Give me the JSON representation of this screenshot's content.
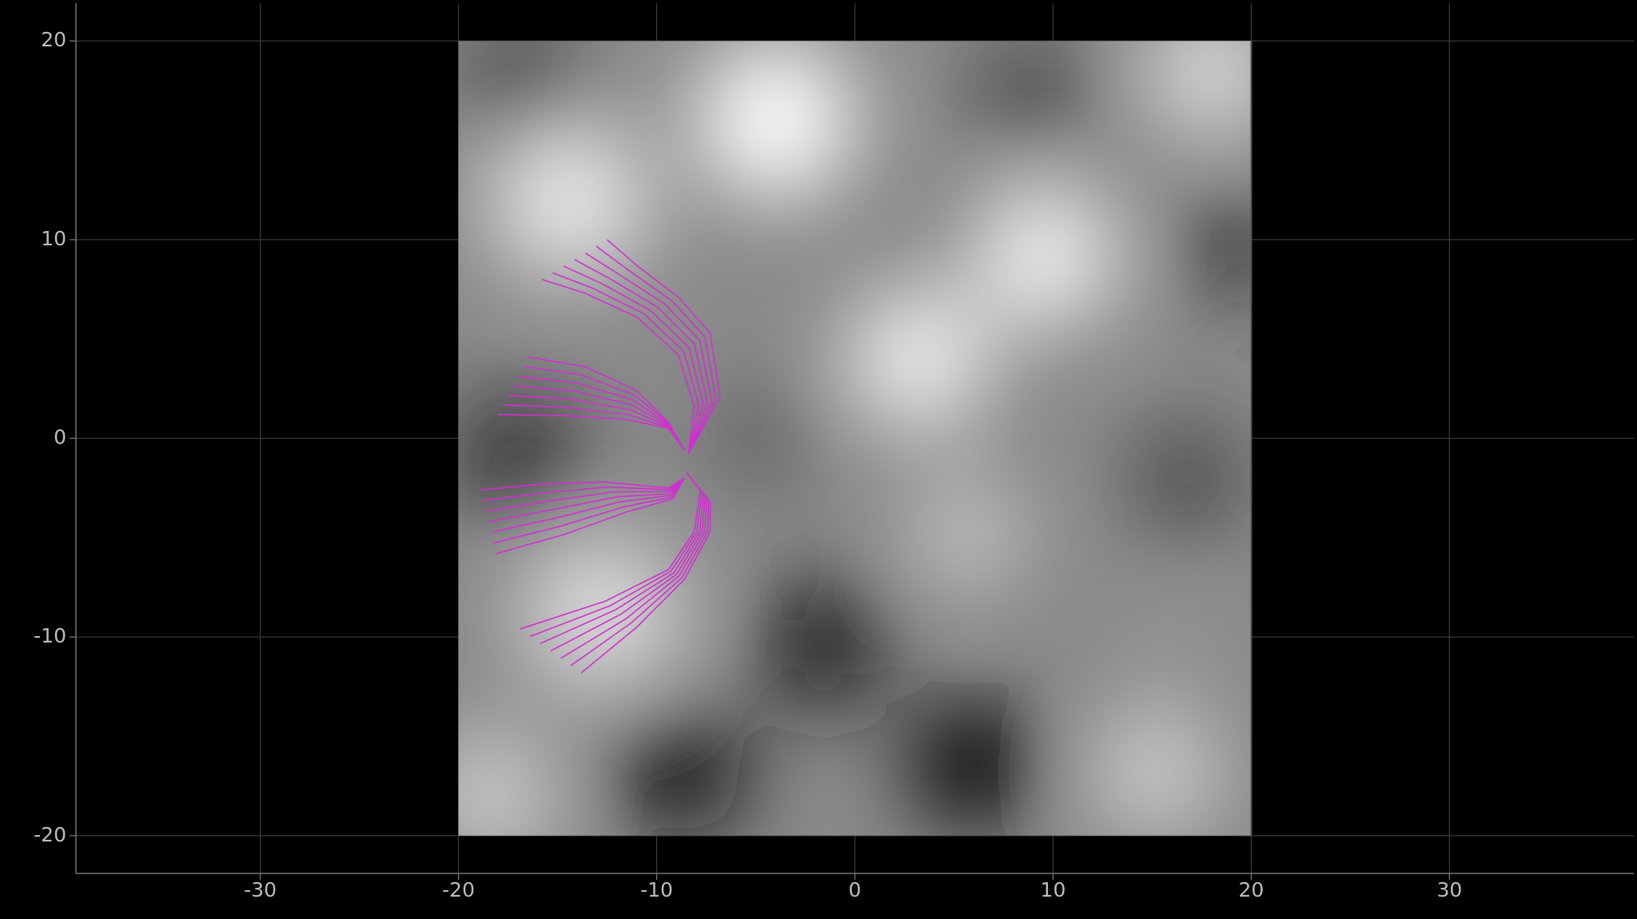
{
  "chart_data": {
    "type": "line",
    "xlim": [
      -39.3,
      39.3
    ],
    "ylim": [
      -21.9,
      21.9
    ],
    "xticks": [
      -30,
      -20,
      -10,
      0,
      10,
      20,
      30
    ],
    "yticks": [
      -20,
      -10,
      0,
      10,
      20
    ],
    "grid": true,
    "image_extent": [
      -20,
      20,
      -20,
      20
    ],
    "line_color": "#d22fd2",
    "series": [
      {
        "x": [
          -8.4,
          -8.1,
          -8.9,
          -11,
          -13.6,
          -15.8
        ],
        "y": [
          -0.8,
          1.6,
          4.2,
          6.1,
          7.3,
          8.0
        ]
      },
      {
        "x": [
          -8.4,
          -7.88,
          -8.63,
          -10.65,
          -13.17,
          -15.25
        ],
        "y": [
          -0.8,
          1.68,
          4.38,
          6.27,
          7.53,
          8.33
        ]
      },
      {
        "x": [
          -8.4,
          -7.67,
          -8.37,
          -10.3,
          -12.73,
          -14.7
        ],
        "y": [
          -0.8,
          1.77,
          4.57,
          6.43,
          7.77,
          8.67
        ]
      },
      {
        "x": [
          -8.4,
          -7.45,
          -8.1,
          -9.95,
          -12.3,
          -14.15
        ],
        "y": [
          -0.8,
          1.85,
          4.75,
          6.6,
          8.0,
          9.0
        ]
      },
      {
        "x": [
          -8.4,
          -7.23,
          -7.83,
          -9.6,
          -11.87,
          -13.6
        ],
        "y": [
          -0.8,
          1.93,
          4.93,
          6.77,
          8.23,
          9.33
        ]
      },
      {
        "x": [
          -8.4,
          -7.02,
          -7.57,
          -9.25,
          -11.43,
          -13.05
        ],
        "y": [
          -0.8,
          2.02,
          5.12,
          6.93,
          8.47,
          9.67
        ]
      },
      {
        "x": [
          -8.4,
          -6.8,
          -7.3,
          -8.9,
          -11,
          -12.5
        ],
        "y": [
          -0.8,
          2.1,
          5.3,
          7.1,
          8.7,
          10.0
        ]
      },
      {
        "x": [
          -8.6,
          -9.4,
          -11.5,
          -14.7,
          -18
        ],
        "y": [
          -0.6,
          0.5,
          0.95,
          1.15,
          1.2
        ]
      },
      {
        "x": [
          -8.6,
          -9.4,
          -11.42,
          -14.52,
          -17.75
        ],
        "y": [
          -0.6,
          0.55,
          1.19,
          1.56,
          1.68
        ]
      },
      {
        "x": [
          -8.6,
          -9.4,
          -11.33,
          -14.33,
          -17.5
        ],
        "y": [
          -0.6,
          0.6,
          1.43,
          1.97,
          2.17
        ]
      },
      {
        "x": [
          -8.6,
          -9.4,
          -11.25,
          -14.15,
          -17.25
        ],
        "y": [
          -0.6,
          0.65,
          1.68,
          2.38,
          2.65
        ]
      },
      {
        "x": [
          -8.6,
          -9.4,
          -11.17,
          -13.97,
          -17.0
        ],
        "y": [
          -0.6,
          0.7,
          1.92,
          2.78,
          3.13
        ]
      },
      {
        "x": [
          -8.6,
          -9.4,
          -11.08,
          -13.78,
          -16.75
        ],
        "y": [
          -0.6,
          0.75,
          2.16,
          3.19,
          3.62
        ]
      },
      {
        "x": [
          -8.6,
          -9.4,
          -11,
          -13.6,
          -16.5
        ],
        "y": [
          -0.6,
          0.8,
          2.4,
          3.6,
          4.1
        ]
      },
      {
        "x": [
          -8.6,
          -9.4,
          -12.6,
          -15.7,
          -18.9
        ],
        "y": [
          -2.0,
          -2.5,
          -2.2,
          -2.3,
          -2.6
        ]
      },
      {
        "x": [
          -8.6,
          -9.37,
          -12.42,
          -15.53,
          -18.77
        ],
        "y": [
          -2.0,
          -2.59,
          -2.45,
          -2.73,
          -3.13
        ]
      },
      {
        "x": [
          -8.6,
          -9.33,
          -12.23,
          -15.37,
          -18.63
        ],
        "y": [
          -2.0,
          -2.68,
          -2.7,
          -3.15,
          -3.67
        ]
      },
      {
        "x": [
          -8.6,
          -9.3,
          -12.05,
          -15.2,
          -18.5
        ],
        "y": [
          -2.0,
          -2.78,
          -2.95,
          -3.58,
          -4.2
        ]
      },
      {
        "x": [
          -8.6,
          -9.27,
          -11.87,
          -15.03,
          -18.37
        ],
        "y": [
          -2.0,
          -2.87,
          -3.2,
          -4.0,
          -4.73
        ]
      },
      {
        "x": [
          -8.6,
          -9.23,
          -11.68,
          -14.87,
          -18.23
        ],
        "y": [
          -2.0,
          -2.96,
          -3.45,
          -4.43,
          -5.27
        ]
      },
      {
        "x": [
          -8.6,
          -9.2,
          -11.5,
          -14.7,
          -18.1
        ],
        "y": [
          -2.0,
          -3.05,
          -3.7,
          -4.85,
          -5.8
        ]
      },
      {
        "x": [
          -8.5,
          -7.8,
          -8.1,
          -9.4,
          -12.6,
          -16.9
        ],
        "y": [
          -1.7,
          -2.6,
          -4.7,
          -6.6,
          -8.2,
          -9.6
        ]
      },
      {
        "x": [
          -8.5,
          -7.72,
          -7.97,
          -9.27,
          -12.33,
          -16.38
        ],
        "y": [
          -1.7,
          -2.7,
          -4.7,
          -6.68,
          -8.42,
          -9.97
        ]
      },
      {
        "x": [
          -8.5,
          -7.63,
          -7.83,
          -9.13,
          -12.07,
          -15.87
        ],
        "y": [
          -1.7,
          -2.8,
          -4.7,
          -6.77,
          -8.63,
          -10.33
        ]
      },
      {
        "x": [
          -8.5,
          -7.55,
          -7.7,
          -9.0,
          -11.8,
          -15.35
        ],
        "y": [
          -1.7,
          -2.9,
          -4.7,
          -6.85,
          -8.85,
          -10.7
        ]
      },
      {
        "x": [
          -8.5,
          -7.47,
          -7.57,
          -8.87,
          -11.53,
          -14.83
        ],
        "y": [
          -1.7,
          -3.0,
          -4.7,
          -6.93,
          -9.07,
          -11.07
        ]
      },
      {
        "x": [
          -8.5,
          -7.38,
          -7.43,
          -8.73,
          -11.27,
          -14.32
        ],
        "y": [
          -1.7,
          -3.1,
          -4.7,
          -7.02,
          -9.28,
          -11.43
        ]
      },
      {
        "x": [
          -8.5,
          -7.3,
          -7.3,
          -8.6,
          -11,
          -13.8
        ],
        "y": [
          -1.7,
          -3.2,
          -4.7,
          -7.1,
          -9.5,
          -11.8
        ]
      }
    ]
  }
}
